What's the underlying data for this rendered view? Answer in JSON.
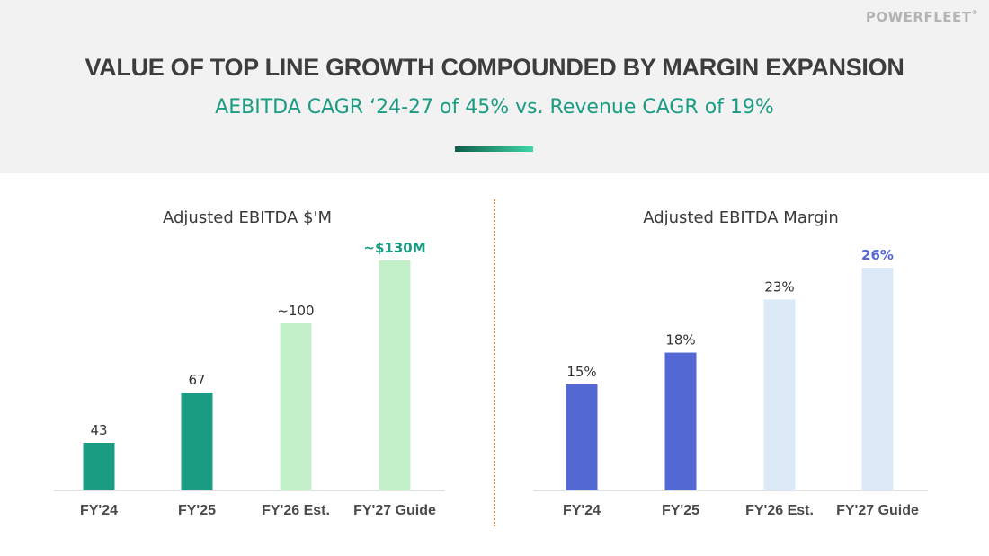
{
  "logo": {
    "text": "POWERFLEET",
    "mark": "®"
  },
  "header": {
    "title": "VALUE OF TOP LINE GROWTH COMPOUNDED BY MARGIN EXPANSION",
    "subtitle": "AEBITDA CAGR ‘24-27 of 45% vs. Revenue CAGR of 19%"
  },
  "colors": {
    "green_actual": "#1a9c82",
    "green_projected": "#c2efc8",
    "blue_actual": "#5468d4",
    "blue_projected": "#dce9f6",
    "divider": "#e08a4a"
  },
  "chart_data": [
    {
      "type": "bar",
      "title": "Adjusted EBITDA $'M",
      "categories": [
        "FY'24",
        "FY'25",
        "FY'26 Est.",
        "FY'27 Guide"
      ],
      "values": [
        43,
        67,
        100,
        130
      ],
      "labels": [
        "43",
        "67",
        "~100",
        "~$130M"
      ],
      "projected": [
        false,
        false,
        true,
        true
      ],
      "highlight_last": true,
      "xlabel": "",
      "ylabel": "",
      "ylim": [
        0,
        140
      ],
      "grid": false,
      "legend": "none"
    },
    {
      "type": "bar",
      "title": "Adjusted EBITDA Margin",
      "categories": [
        "FY'24",
        "FY'25",
        "FY'26 Est.",
        "FY'27 Guide"
      ],
      "values": [
        15,
        18,
        23,
        26
      ],
      "labels": [
        "15%",
        "18%",
        "23%",
        "26%"
      ],
      "projected": [
        false,
        false,
        true,
        true
      ],
      "highlight_last": true,
      "xlabel": "",
      "ylabel": "",
      "ylim": [
        0,
        30
      ],
      "grid": false,
      "legend": "none"
    }
  ]
}
